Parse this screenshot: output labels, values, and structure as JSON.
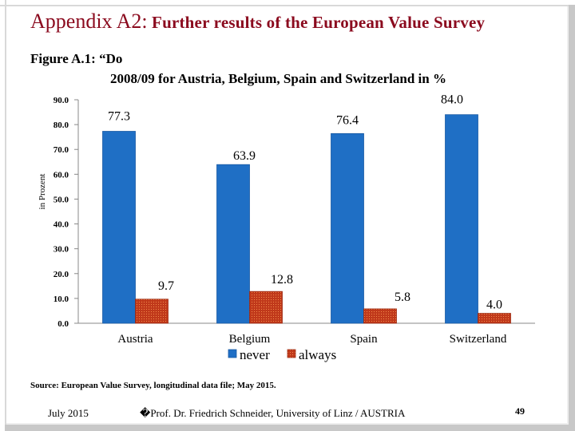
{
  "slide": {
    "title_main": "Appendix A2:",
    "title_sub": " Further results of the European Value Survey",
    "figure_line1": "Figure A.1: “Do",
    "figure_line2": "2008/09 for Austria, Belgium, Spain and Switzerland in %",
    "source": "Source: European Value Survey, longitudinal data file; May 2015.",
    "footer_date": "July 2015",
    "footer_author": "�Prof. Dr. Friedrich Schneider, University of Linz / AUSTRIA",
    "page_number": "49"
  },
  "colors": {
    "title": "#8b0a1e",
    "never": "#1f6fc5",
    "always": "#c0391b"
  },
  "chart_data": {
    "type": "bar",
    "title": "",
    "xlabel": "",
    "ylabel": "in Prozent",
    "ylim": [
      0,
      90
    ],
    "yticks": [
      "0.0",
      "10.0",
      "20.0",
      "30.0",
      "40.0",
      "50.0",
      "60.0",
      "70.0",
      "80.0",
      "90.0"
    ],
    "categories": [
      "Austria",
      "Belgium",
      "Spain",
      "Switzerland"
    ],
    "series": [
      {
        "name": "never",
        "values": [
          77.3,
          63.9,
          76.4,
          84.0
        ],
        "labels": [
          "77.3",
          "63.9",
          "76.4",
          "84.0"
        ]
      },
      {
        "name": "always",
        "values": [
          9.7,
          12.8,
          5.8,
          4.0
        ],
        "labels": [
          "9.7",
          "12.8",
          "5.8",
          "4.0"
        ]
      }
    ],
    "legend_position": "bottom-center",
    "grid": false
  }
}
